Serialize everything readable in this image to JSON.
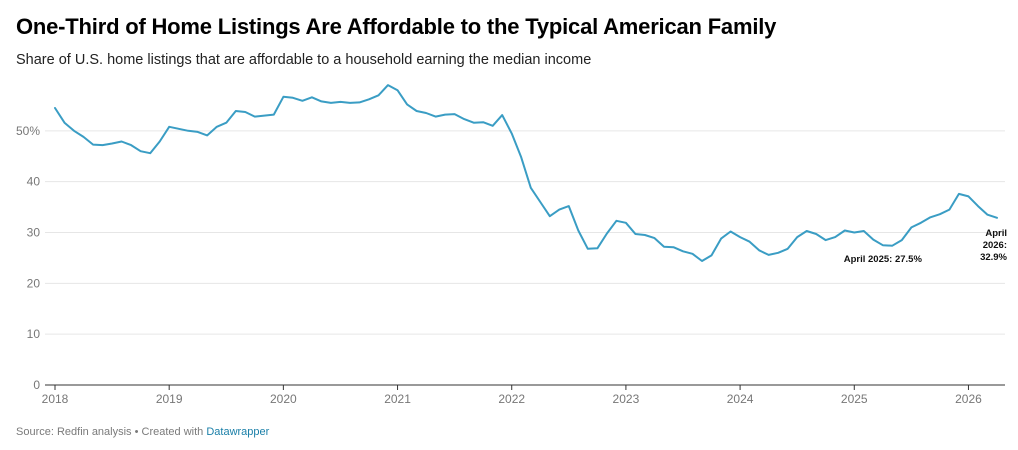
{
  "title": "One-Third of Home Listings Are Affordable to the Typical American Family",
  "subtitle": "Share of U.S. home listings that are affordable to a household earning the median income",
  "footer": {
    "source": "Source: Redfin analysis • Created with ",
    "link": "Datawrapper"
  },
  "colors": {
    "line": "#3a9dc4",
    "grid": "#e6e6e6",
    "axis": "#333333",
    "tick_text": "#777777",
    "link": "#1a7fa8"
  },
  "chart_data": {
    "type": "line",
    "title": "One-Third of Home Listings Are Affordable to the Typical American Family",
    "subtitle": "Share of U.S. home listings that are affordable to a household earning the median income",
    "xlabel": "",
    "ylabel": "",
    "ylim": [
      0,
      60
    ],
    "xlim": [
      "2018-01",
      "2026-04"
    ],
    "y_ticks": [
      0,
      10,
      20,
      30,
      40,
      50
    ],
    "y_tick_labels": [
      "0",
      "10",
      "20",
      "30",
      "40",
      "50%"
    ],
    "x_ticks": [
      "2018-01",
      "2019-01",
      "2020-01",
      "2021-01",
      "2022-01",
      "2023-01",
      "2024-01",
      "2025-01",
      "2026-01"
    ],
    "x_tick_labels": [
      "2018",
      "2019",
      "2020",
      "2021",
      "2022",
      "2023",
      "2024",
      "2025",
      "2026"
    ],
    "grid": true,
    "legend": "none",
    "x": [
      "2018-01",
      "2018-02",
      "2018-03",
      "2018-04",
      "2018-05",
      "2018-06",
      "2018-07",
      "2018-08",
      "2018-09",
      "2018-10",
      "2018-11",
      "2018-12",
      "2019-01",
      "2019-02",
      "2019-03",
      "2019-04",
      "2019-05",
      "2019-06",
      "2019-07",
      "2019-08",
      "2019-09",
      "2019-10",
      "2019-11",
      "2019-12",
      "2020-01",
      "2020-02",
      "2020-03",
      "2020-04",
      "2020-05",
      "2020-06",
      "2020-07",
      "2020-08",
      "2020-09",
      "2020-10",
      "2020-11",
      "2020-12",
      "2021-01",
      "2021-02",
      "2021-03",
      "2021-04",
      "2021-05",
      "2021-06",
      "2021-07",
      "2021-08",
      "2021-09",
      "2021-10",
      "2021-11",
      "2021-12",
      "2022-01",
      "2022-02",
      "2022-03",
      "2022-04",
      "2022-05",
      "2022-06",
      "2022-07",
      "2022-08",
      "2022-09",
      "2022-10",
      "2022-11",
      "2022-12",
      "2023-01",
      "2023-02",
      "2023-03",
      "2023-04",
      "2023-05",
      "2023-06",
      "2023-07",
      "2023-08",
      "2023-09",
      "2023-10",
      "2023-11",
      "2023-12",
      "2024-01",
      "2024-02",
      "2024-03",
      "2024-04",
      "2024-05",
      "2024-06",
      "2024-07",
      "2024-08",
      "2024-09",
      "2024-10",
      "2024-11",
      "2024-12",
      "2025-01",
      "2025-02",
      "2025-03",
      "2025-04",
      "2025-05",
      "2025-06",
      "2025-07",
      "2025-08",
      "2025-09",
      "2025-10",
      "2025-11",
      "2025-12",
      "2026-01",
      "2026-02",
      "2026-03",
      "2026-04"
    ],
    "series": [
      {
        "name": "",
        "values": [
          54.5,
          51.6,
          50.0,
          48.8,
          47.3,
          47.2,
          47.5,
          47.9,
          47.2,
          46.0,
          45.6,
          47.9,
          50.8,
          50.4,
          50.0,
          49.8,
          49.1,
          50.8,
          51.6,
          53.9,
          53.7,
          52.8,
          53.0,
          53.2,
          56.7,
          56.5,
          55.9,
          56.6,
          55.8,
          55.5,
          55.7,
          55.5,
          55.6,
          56.2,
          57.0,
          59.0,
          58.0,
          55.2,
          53.9,
          53.5,
          52.8,
          53.2,
          53.3,
          52.3,
          51.6,
          51.7,
          51.0,
          53.1,
          49.5,
          44.8,
          38.8,
          36.0,
          33.2,
          34.5,
          35.2,
          30.4,
          26.8,
          26.9,
          29.8,
          32.3,
          31.9,
          29.7,
          29.5,
          28.9,
          27.2,
          27.1,
          26.3,
          25.8,
          24.4,
          25.5,
          28.8,
          30.2,
          29.1,
          28.2,
          26.5,
          25.6,
          26.0,
          26.8,
          29.1,
          30.3,
          29.7,
          28.5,
          29.1,
          30.4,
          30.0,
          30.3,
          28.6,
          27.5,
          27.4,
          28.5,
          31.0,
          31.9,
          33.0,
          33.6,
          34.5,
          37.6,
          37.1,
          35.2,
          33.5,
          32.9
        ]
      }
    ],
    "annotations": [
      {
        "text": "April 2025: 27.5%",
        "x": "2025-04",
        "y": 27.5
      },
      {
        "text_lines": [
          "April",
          "2026:",
          "32.9%"
        ],
        "x": "2026-04",
        "y": 32.9
      }
    ]
  }
}
